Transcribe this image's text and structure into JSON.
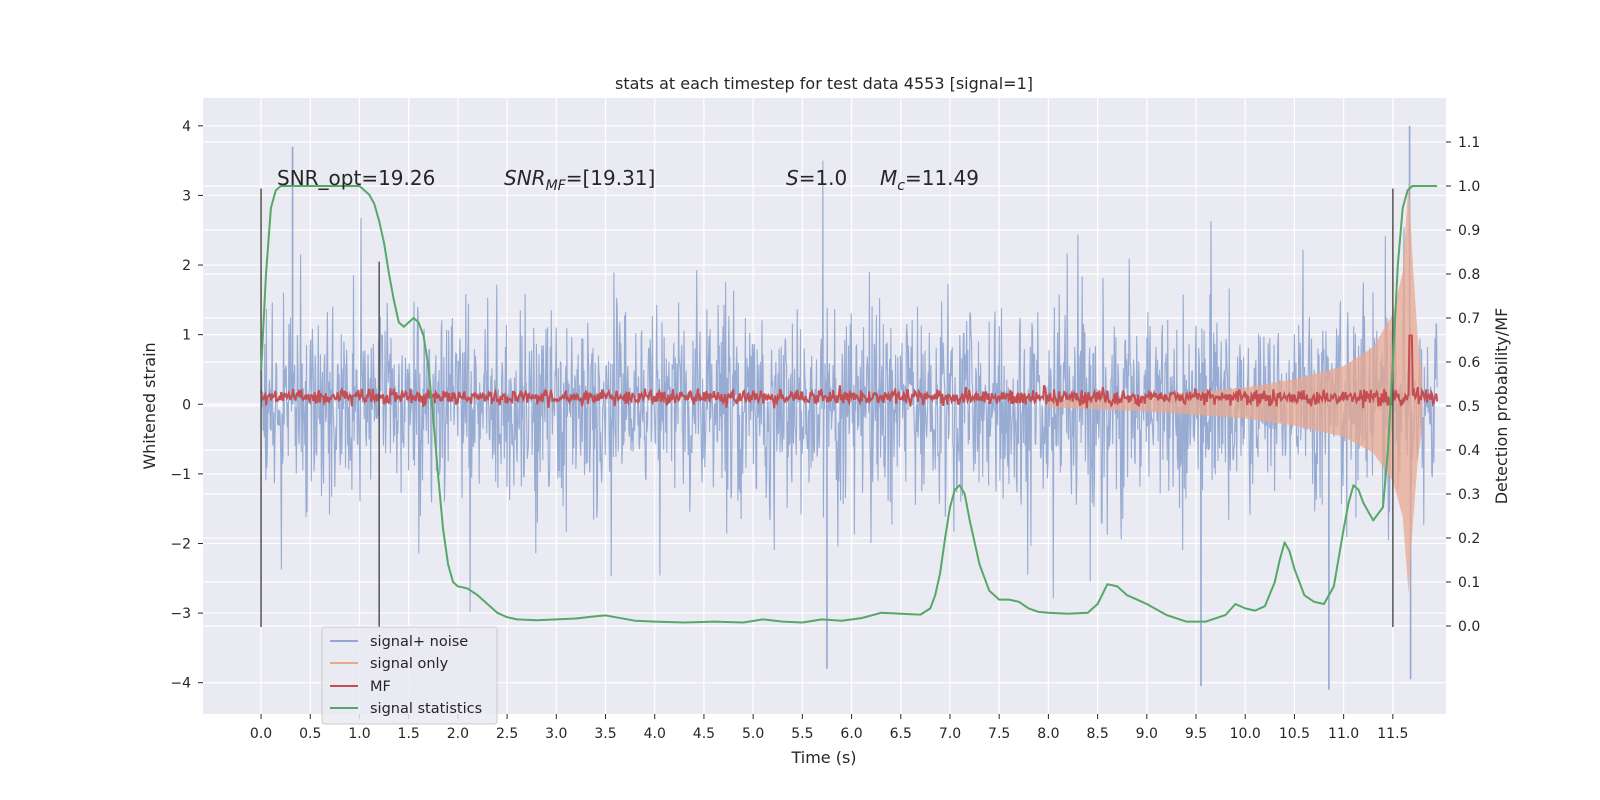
{
  "chart_data": {
    "type": "line",
    "title": "stats at each timestep for test data 4553 [signal=1]",
    "xlabel": "Time (s)",
    "ylabel": "Whitened strain",
    "y2label": "Detection probability/MF",
    "xlim": [
      -0.59,
      12.04
    ],
    "ylim": [
      -4.45,
      4.4
    ],
    "y2lim": [
      -0.2,
      1.2
    ],
    "x_ticks": [
      "0.0",
      "0.5",
      "1.0",
      "1.5",
      "2.0",
      "2.5",
      "3.0",
      "3.5",
      "4.0",
      "4.5",
      "5.0",
      "5.5",
      "6.0",
      "6.5",
      "7.0",
      "7.5",
      "8.0",
      "8.5",
      "9.0",
      "9.5",
      "10.0",
      "10.5",
      "11.0",
      "11.5"
    ],
    "y_ticks": [
      "4",
      "3",
      "2",
      "1",
      "0",
      "−1",
      "−2",
      "−3",
      "−4"
    ],
    "y2_ticks": [
      "1.1",
      "1.0",
      "0.9",
      "0.8",
      "0.7",
      "0.6",
      "0.5",
      "0.4",
      "0.3",
      "0.2",
      "0.1",
      "0.0"
    ],
    "grid": true,
    "legend_position": "lower-left",
    "annotations": {
      "snr_opt": "SNR_opt=19.26",
      "snr_mf_label": "SNR",
      "snr_mf_sub": "MF",
      "snr_mf_value": "=[19.31]",
      "s_label": "S",
      "s_value": "=1.0",
      "mc_label": "M",
      "mc_sub": "c",
      "mc_value": "=11.49"
    },
    "vertical_markers": [
      {
        "x": 0.0,
        "y_range": [
          -3.2,
          3.1
        ]
      },
      {
        "x": 1.2,
        "y_range": [
          -3.2,
          2.05
        ]
      },
      {
        "x": 11.5,
        "y_range": [
          -3.2,
          3.1
        ]
      }
    ],
    "series": [
      {
        "name": "signal+ noise",
        "color": "#92a8d1",
        "noise_band": {
          "x_range": [
            0.0,
            11.95
          ],
          "typical_amplitude": 1.8,
          "peak_max": 4.0,
          "peak_min": -4.1
        },
        "highlights": [
          [
            0.32,
            3.7
          ],
          [
            11.67,
            4.0
          ],
          [
            9.55,
            -4.05
          ],
          [
            10.85,
            -4.1
          ],
          [
            5.75,
            -3.8
          ],
          [
            11.68,
            -3.95
          ]
        ]
      },
      {
        "name": "signal only",
        "color": "#e8a890",
        "envelope": {
          "x": [
            8.0,
            9.0,
            10.0,
            10.5,
            11.0,
            11.3,
            11.5,
            11.6,
            11.66,
            11.7,
            11.75,
            11.8
          ],
          "amplitude": [
            0.05,
            0.12,
            0.24,
            0.36,
            0.55,
            0.82,
            1.3,
            1.9,
            3.2,
            2.1,
            1.0,
            0.4
          ]
        }
      },
      {
        "name": "MF",
        "color": "#c44e52",
        "baseline": 0.52,
        "noise_amplitude": 0.012,
        "peak": {
          "x": 11.68,
          "y": 0.66
        }
      },
      {
        "name": "signal statistics",
        "color": "#55a868",
        "x": [
          0.0,
          0.05,
          0.1,
          0.15,
          0.2,
          0.3,
          0.4,
          0.5,
          0.6,
          0.7,
          0.8,
          0.9,
          1.0,
          1.1,
          1.15,
          1.2,
          1.25,
          1.3,
          1.35,
          1.4,
          1.45,
          1.5,
          1.55,
          1.6,
          1.65,
          1.7,
          1.75,
          1.8,
          1.85,
          1.9,
          1.95,
          2.0,
          2.05,
          2.1,
          2.2,
          2.3,
          2.4,
          2.5,
          2.6,
          2.8,
          3.0,
          3.2,
          3.4,
          3.5,
          3.6,
          3.8,
          4.0,
          4.3,
          4.6,
          4.9,
          5.1,
          5.3,
          5.5,
          5.7,
          5.9,
          6.1,
          6.3,
          6.5,
          6.7,
          6.8,
          6.85,
          6.9,
          6.95,
          7.0,
          7.05,
          7.1,
          7.15,
          7.2,
          7.3,
          7.4,
          7.5,
          7.6,
          7.7,
          7.8,
          7.9,
          8.0,
          8.2,
          8.4,
          8.5,
          8.6,
          8.7,
          8.8,
          8.9,
          9.0,
          9.2,
          9.4,
          9.6,
          9.8,
          9.9,
          10.0,
          10.1,
          10.2,
          10.3,
          10.35,
          10.4,
          10.45,
          10.5,
          10.55,
          10.6,
          10.7,
          10.8,
          10.9,
          11.0,
          11.05,
          11.1,
          11.15,
          11.2,
          11.3,
          11.4,
          11.45,
          11.5,
          11.55,
          11.6,
          11.65,
          11.7,
          11.8,
          11.9,
          11.95
        ],
        "y": [
          0.58,
          0.8,
          0.95,
          0.99,
          1.0,
          1.0,
          1.0,
          1.0,
          1.0,
          1.0,
          1.0,
          1.0,
          1.0,
          0.98,
          0.96,
          0.92,
          0.87,
          0.8,
          0.74,
          0.69,
          0.68,
          0.69,
          0.7,
          0.69,
          0.66,
          0.59,
          0.47,
          0.34,
          0.22,
          0.14,
          0.1,
          0.09,
          0.088,
          0.085,
          0.07,
          0.05,
          0.03,
          0.02,
          0.015,
          0.013,
          0.015,
          0.017,
          0.022,
          0.024,
          0.02,
          0.012,
          0.01,
          0.008,
          0.01,
          0.008,
          0.015,
          0.01,
          0.008,
          0.015,
          0.012,
          0.018,
          0.03,
          0.028,
          0.026,
          0.04,
          0.07,
          0.12,
          0.2,
          0.27,
          0.31,
          0.32,
          0.3,
          0.24,
          0.14,
          0.08,
          0.06,
          0.06,
          0.055,
          0.04,
          0.032,
          0.03,
          0.028,
          0.03,
          0.05,
          0.095,
          0.09,
          0.07,
          0.06,
          0.05,
          0.025,
          0.01,
          0.01,
          0.025,
          0.05,
          0.04,
          0.035,
          0.045,
          0.1,
          0.15,
          0.19,
          0.17,
          0.13,
          0.1,
          0.07,
          0.055,
          0.05,
          0.09,
          0.22,
          0.28,
          0.32,
          0.31,
          0.28,
          0.24,
          0.27,
          0.4,
          0.6,
          0.82,
          0.95,
          0.99,
          1.0,
          1.0,
          1.0,
          1.0
        ]
      }
    ]
  }
}
